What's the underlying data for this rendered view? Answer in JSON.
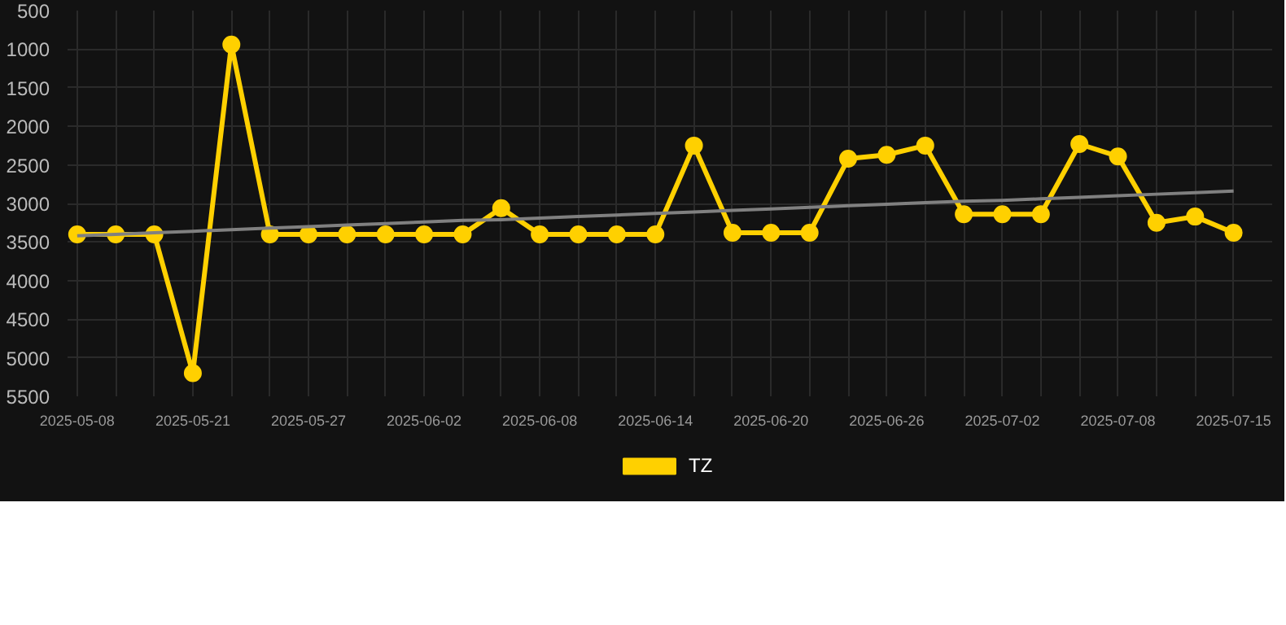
{
  "chart_data": {
    "type": "line",
    "categories": [
      "2025-05-08",
      null,
      null,
      "2025-05-21",
      null,
      null,
      "2025-05-27",
      null,
      null,
      "2025-06-02",
      null,
      null,
      "2025-06-08",
      null,
      null,
      "2025-06-14",
      null,
      null,
      "2025-06-20",
      null,
      null,
      "2025-06-26",
      null,
      null,
      "2025-07-02",
      null,
      null,
      "2025-07-08",
      null,
      null,
      "2025-07-15"
    ],
    "series": [
      {
        "name": "TZ",
        "color": "#ffd000",
        "marker": "circle",
        "values": [
          3400,
          3400,
          3400,
          5200,
          940,
          3400,
          3400,
          3400,
          3400,
          3400,
          3400,
          3060,
          3400,
          3400,
          3400,
          3400,
          2250,
          3380,
          3380,
          3380,
          2420,
          2370,
          2250,
          3140,
          3140,
          3140,
          2230,
          2390,
          3250,
          3170,
          3380
        ]
      },
      {
        "color": "#808080",
        "marker": "none",
        "values": [
          3420,
          3400,
          3380,
          3360,
          3340,
          3320,
          3300,
          3280,
          3260,
          3240,
          3220,
          3210,
          3190,
          3170,
          3150,
          3130,
          3110,
          3090,
          3070,
          3050,
          3030,
          3010,
          2990,
          2970,
          2960,
          2940,
          2920,
          2900,
          2880,
          2860,
          2840
        ]
      }
    ],
    "ylim": [
      5500,
      500
    ],
    "yticks": [
      500,
      1000,
      1500,
      2000,
      2500,
      3000,
      3500,
      4000,
      4500,
      5000,
      5500
    ],
    "grid": true,
    "legend": "bottom"
  }
}
